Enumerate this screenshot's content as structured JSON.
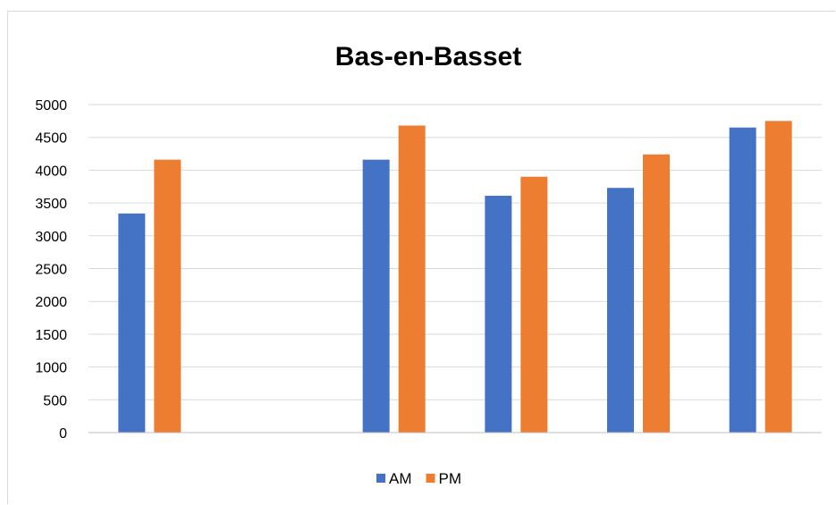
{
  "chart_data": {
    "type": "bar",
    "title": "Bas-en-Basset",
    "xlabel": "",
    "ylabel": "",
    "categories": [
      "",
      "",
      "",
      "",
      "",
      ""
    ],
    "series": [
      {
        "name": "AM",
        "color": "#4472C4",
        "values": [
          3340,
          null,
          4160,
          3610,
          3730,
          4650
        ]
      },
      {
        "name": "PM",
        "color": "#ED7D31",
        "values": [
          4160,
          null,
          4680,
          3900,
          4240,
          4750
        ]
      }
    ],
    "ylim": [
      0,
      5000
    ],
    "yticks": [
      "0",
      "500",
      "1000",
      "1500",
      "2000",
      "2500",
      "3000",
      "3500",
      "4000",
      "4500",
      "5000"
    ],
    "grid": true,
    "legend": "bottom"
  }
}
